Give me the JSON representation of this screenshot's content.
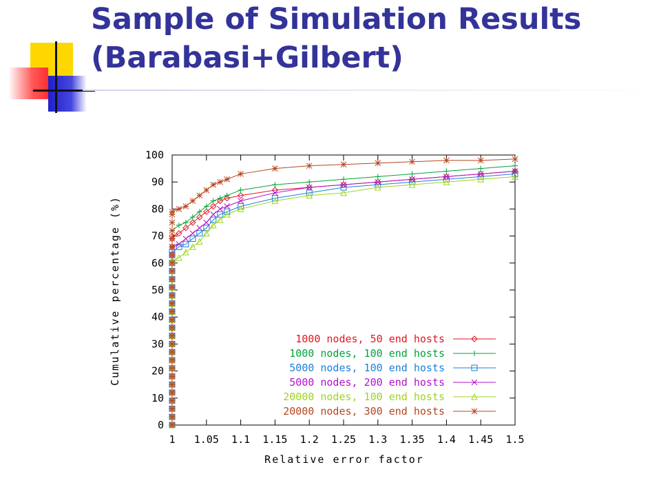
{
  "slide": {
    "title_line1": "Sample of Simulation Results",
    "title_line2": "(Barabasi+Gilbert)"
  },
  "chart_data": {
    "type": "line",
    "xlabel": "Relative error factor",
    "ylabel": "Cumulative percentage (%)",
    "xlim": [
      1,
      1.5
    ],
    "ylim": [
      0,
      100
    ],
    "xticks": [
      "1",
      "1.05",
      "1.1",
      "1.15",
      "1.2",
      "1.25",
      "1.3",
      "1.35",
      "1.4",
      "1.45",
      "1.5"
    ],
    "yticks": [
      "0",
      "10",
      "20",
      "30",
      "40",
      "50",
      "60",
      "70",
      "80",
      "90",
      "100"
    ],
    "legend_position": "bottom-right",
    "series": [
      {
        "name": "1000 nodes, 50 end hosts",
        "color": "#e0161e",
        "marker": "diamond",
        "y0": 70,
        "points": [
          [
            1,
            70
          ],
          [
            1.01,
            71
          ],
          [
            1.02,
            73
          ],
          [
            1.03,
            75
          ],
          [
            1.04,
            77
          ],
          [
            1.05,
            79
          ],
          [
            1.06,
            81
          ],
          [
            1.07,
            83
          ],
          [
            1.08,
            84
          ],
          [
            1.1,
            85
          ],
          [
            1.15,
            87
          ],
          [
            1.2,
            88
          ],
          [
            1.25,
            89
          ],
          [
            1.3,
            90
          ],
          [
            1.35,
            91
          ],
          [
            1.4,
            92
          ],
          [
            1.45,
            93
          ],
          [
            1.5,
            94
          ]
        ]
      },
      {
        "name": "1000 nodes, 100 end hosts",
        "color": "#00a33a",
        "marker": "plus",
        "y0": 72,
        "points": [
          [
            1,
            72
          ],
          [
            1.01,
            74
          ],
          [
            1.02,
            75
          ],
          [
            1.03,
            77
          ],
          [
            1.04,
            79
          ],
          [
            1.05,
            81
          ],
          [
            1.06,
            83
          ],
          [
            1.07,
            84
          ],
          [
            1.08,
            85
          ],
          [
            1.1,
            87
          ],
          [
            1.15,
            89
          ],
          [
            1.2,
            90
          ],
          [
            1.25,
            91
          ],
          [
            1.3,
            92
          ],
          [
            1.35,
            93
          ],
          [
            1.4,
            94
          ],
          [
            1.45,
            95
          ],
          [
            1.5,
            96
          ]
        ]
      },
      {
        "name": "5000 nodes, 100 end hosts",
        "color": "#1a7fdc",
        "marker": "square",
        "y0": 64,
        "points": [
          [
            1,
            64
          ],
          [
            1.01,
            66
          ],
          [
            1.02,
            67
          ],
          [
            1.03,
            69
          ],
          [
            1.04,
            71
          ],
          [
            1.05,
            73
          ],
          [
            1.06,
            76
          ],
          [
            1.07,
            78
          ],
          [
            1.08,
            79
          ],
          [
            1.1,
            81
          ],
          [
            1.15,
            84
          ],
          [
            1.2,
            86
          ],
          [
            1.25,
            88
          ],
          [
            1.3,
            89
          ],
          [
            1.35,
            90
          ],
          [
            1.4,
            91
          ],
          [
            1.45,
            92
          ],
          [
            1.5,
            93
          ]
        ]
      },
      {
        "name": "5000 nodes, 200 end hosts",
        "color": "#b311cc",
        "marker": "cross",
        "y0": 66,
        "points": [
          [
            1,
            66
          ],
          [
            1.01,
            67
          ],
          [
            1.02,
            69
          ],
          [
            1.03,
            71
          ],
          [
            1.04,
            73
          ],
          [
            1.05,
            75
          ],
          [
            1.06,
            78
          ],
          [
            1.07,
            80
          ],
          [
            1.08,
            81
          ],
          [
            1.1,
            83
          ],
          [
            1.15,
            86
          ],
          [
            1.2,
            88
          ],
          [
            1.25,
            89
          ],
          [
            1.3,
            90
          ],
          [
            1.35,
            91
          ],
          [
            1.4,
            92
          ],
          [
            1.45,
            93
          ],
          [
            1.5,
            94
          ]
        ]
      },
      {
        "name": "20000 nodes, 100 end hosts",
        "color": "#9dd41c",
        "marker": "triangle",
        "y0": 61,
        "points": [
          [
            1,
            61
          ],
          [
            1.01,
            62
          ],
          [
            1.02,
            64
          ],
          [
            1.03,
            66
          ],
          [
            1.04,
            68
          ],
          [
            1.05,
            71
          ],
          [
            1.06,
            74
          ],
          [
            1.07,
            76
          ],
          [
            1.08,
            78
          ],
          [
            1.1,
            80
          ],
          [
            1.15,
            83
          ],
          [
            1.2,
            85
          ],
          [
            1.25,
            86
          ],
          [
            1.3,
            88
          ],
          [
            1.35,
            89
          ],
          [
            1.4,
            90
          ],
          [
            1.45,
            91
          ],
          [
            1.5,
            92
          ]
        ]
      },
      {
        "name": "20000 nodes, 300 end hosts",
        "color": "#b5461e",
        "marker": "star",
        "y0": 79,
        "points": [
          [
            1,
            79
          ],
          [
            1.01,
            80
          ],
          [
            1.02,
            81
          ],
          [
            1.03,
            83
          ],
          [
            1.04,
            85
          ],
          [
            1.05,
            87
          ],
          [
            1.06,
            89
          ],
          [
            1.07,
            90
          ],
          [
            1.08,
            91
          ],
          [
            1.1,
            93
          ],
          [
            1.15,
            95
          ],
          [
            1.2,
            96
          ],
          [
            1.25,
            96.5
          ],
          [
            1.3,
            97
          ],
          [
            1.35,
            97.5
          ],
          [
            1.4,
            98
          ],
          [
            1.45,
            98
          ],
          [
            1.5,
            98.5
          ]
        ]
      }
    ]
  }
}
